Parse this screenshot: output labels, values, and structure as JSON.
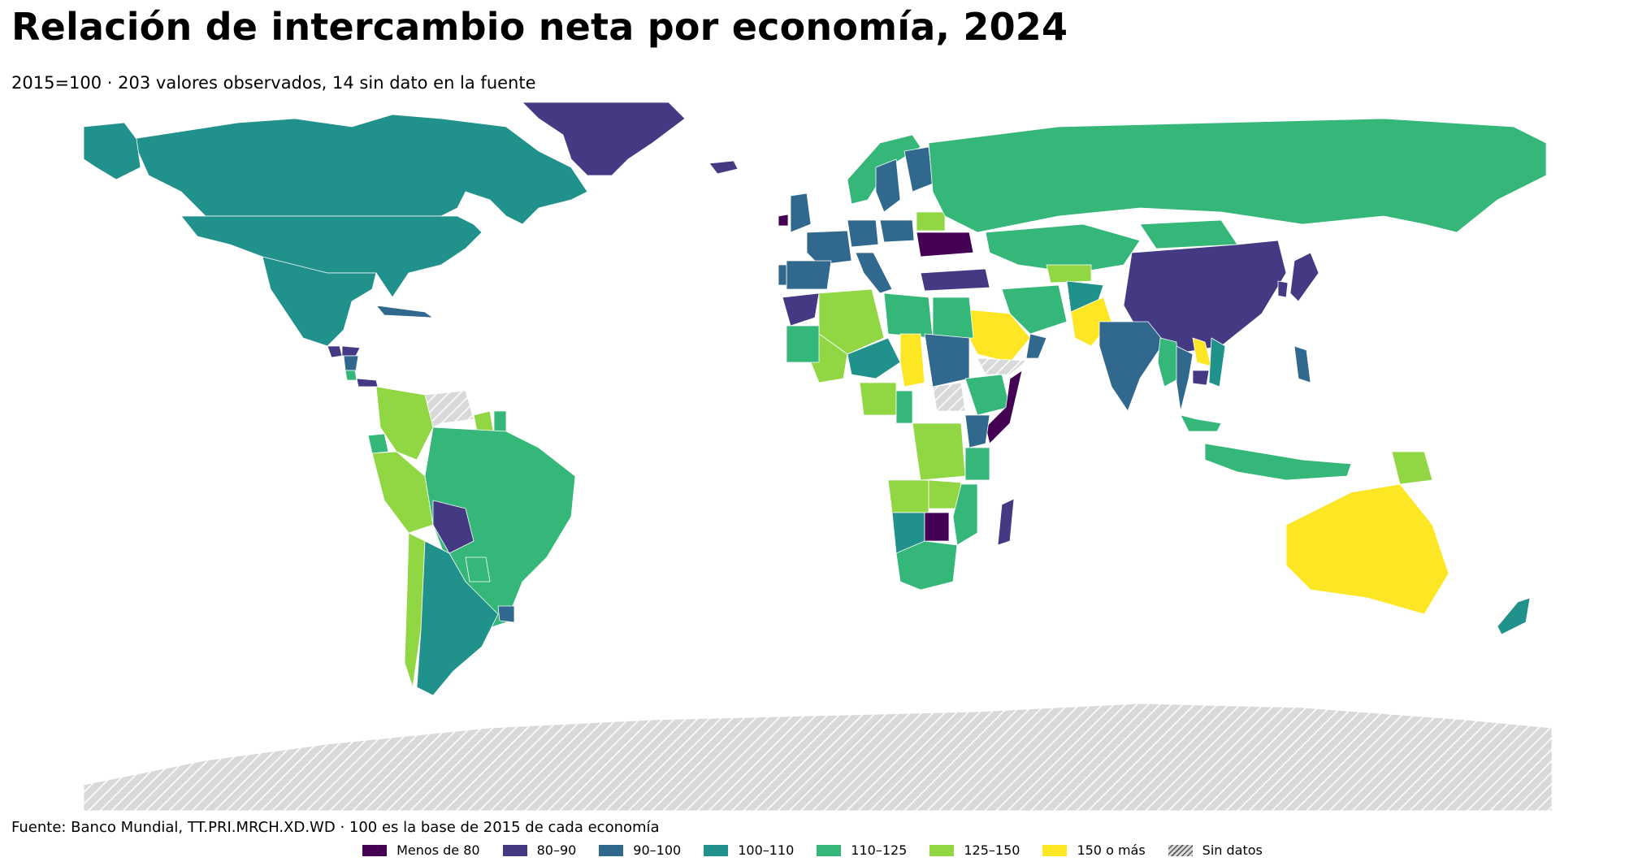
{
  "title": "Relación de intercambio neta por economía, 2024",
  "subtitle": "2015=100 · 203 valores observados, 14 sin dato en la fuente",
  "source": "Fuente: Banco Mundial, TT.PRI.MRCH.XD.WD · 100 es la base de 2015 de cada economía",
  "legend": {
    "placement": "bottom-center",
    "items": [
      {
        "label": "Menos de 80",
        "color": "#440154"
      },
      {
        "label": "80–90",
        "color": "#443983"
      },
      {
        "label": "90–100",
        "color": "#31688e"
      },
      {
        "label": "100–110",
        "color": "#21918c"
      },
      {
        "label": "110–125",
        "color": "#35b779"
      },
      {
        "label": "125–150",
        "color": "#90d743"
      },
      {
        "label": "150 o más",
        "color": "#fde725"
      },
      {
        "label": "Sin datos",
        "color": "#d9d9d9",
        "hatch": true
      }
    ]
  },
  "chart_data": {
    "type": "choropleth",
    "year": 2024,
    "base": "2015=100",
    "observed_count": 203,
    "missing_count": 14,
    "bins": [
      "Menos de 80",
      "80–90",
      "90–100",
      "100–110",
      "110–125",
      "125–150",
      "150 o más",
      "Sin datos"
    ],
    "regions": [
      {
        "region": "Canada",
        "bin": "100–110"
      },
      {
        "region": "United States",
        "bin": "100–110"
      },
      {
        "region": "Alaska",
        "bin": "100–110"
      },
      {
        "region": "Mexico",
        "bin": "100–110"
      },
      {
        "region": "Guatemala",
        "bin": "80–90"
      },
      {
        "region": "Honduras",
        "bin": "80–90"
      },
      {
        "region": "Nicaragua",
        "bin": "90–100"
      },
      {
        "region": "Costa Rica",
        "bin": "110–125"
      },
      {
        "region": "Panama",
        "bin": "80–90"
      },
      {
        "region": "Cuba",
        "bin": "90–100"
      },
      {
        "region": "Greenland",
        "bin": "80–90"
      },
      {
        "region": "Iceland",
        "bin": "80–90"
      },
      {
        "region": "Colombia",
        "bin": "125–150"
      },
      {
        "region": "Venezuela",
        "bin": "Sin datos"
      },
      {
        "region": "Guyana",
        "bin": "125–150"
      },
      {
        "region": "Suriname",
        "bin": "110–125"
      },
      {
        "region": "Ecuador",
        "bin": "110–125"
      },
      {
        "region": "Peru",
        "bin": "125–150"
      },
      {
        "region": "Brazil",
        "bin": "110–125"
      },
      {
        "region": "Bolivia",
        "bin": "80–90"
      },
      {
        "region": "Paraguay",
        "bin": "110–125"
      },
      {
        "region": "Chile",
        "bin": "125–150"
      },
      {
        "region": "Argentina",
        "bin": "100–110"
      },
      {
        "region": "Uruguay",
        "bin": "90–100"
      },
      {
        "region": "Ireland",
        "bin": "Menos de 80"
      },
      {
        "region": "United Kingdom",
        "bin": "90–100"
      },
      {
        "region": "France",
        "bin": "90–100"
      },
      {
        "region": "Spain",
        "bin": "90–100"
      },
      {
        "region": "Portugal",
        "bin": "90–100"
      },
      {
        "region": "Germany",
        "bin": "90–100"
      },
      {
        "region": "Italy",
        "bin": "90–100"
      },
      {
        "region": "Norway",
        "bin": "110–125"
      },
      {
        "region": "Sweden",
        "bin": "90–100"
      },
      {
        "region": "Finland",
        "bin": "90–100"
      },
      {
        "region": "Poland",
        "bin": "90–100"
      },
      {
        "region": "Belarus",
        "bin": "125–150"
      },
      {
        "region": "Ukraine",
        "bin": "Menos de 80"
      },
      {
        "region": "Turkey",
        "bin": "80–90"
      },
      {
        "region": "Russia",
        "bin": "110–125"
      },
      {
        "region": "Kazakhstan",
        "bin": "110–125"
      },
      {
        "region": "Uzbekistan",
        "bin": "125–150"
      },
      {
        "region": "Mongolia",
        "bin": "110–125"
      },
      {
        "region": "China",
        "bin": "80–90"
      },
      {
        "region": "Japan",
        "bin": "80–90"
      },
      {
        "region": "South Korea",
        "bin": "80–90"
      },
      {
        "region": "Iran",
        "bin": "110–125"
      },
      {
        "region": "Afghanistan",
        "bin": "100–110"
      },
      {
        "region": "Pakistan",
        "bin": "150 o más"
      },
      {
        "region": "India",
        "bin": "90–100"
      },
      {
        "region": "Saudi Arabia",
        "bin": "150 o más"
      },
      {
        "region": "Oman",
        "bin": "90–100"
      },
      {
        "region": "Yemen",
        "bin": "Sin datos"
      },
      {
        "region": "Myanmar",
        "bin": "110–125"
      },
      {
        "region": "Thailand",
        "bin": "90–100"
      },
      {
        "region": "Laos",
        "bin": "150 o más"
      },
      {
        "region": "Vietnam",
        "bin": "100–110"
      },
      {
        "region": "Cambodia",
        "bin": "80–90"
      },
      {
        "region": "Malaysia",
        "bin": "110–125"
      },
      {
        "region": "Indonesia",
        "bin": "110–125"
      },
      {
        "region": "Philippines",
        "bin": "90–100"
      },
      {
        "region": "Papua New Guinea",
        "bin": "125–150"
      },
      {
        "region": "Australia",
        "bin": "150 o más"
      },
      {
        "region": "New Zealand",
        "bin": "100–110"
      },
      {
        "region": "Morocco",
        "bin": "80–90"
      },
      {
        "region": "Algeria",
        "bin": "125–150"
      },
      {
        "region": "Mali",
        "bin": "125–150"
      },
      {
        "region": "Mauritania",
        "bin": "110–125"
      },
      {
        "region": "Libya",
        "bin": "110–125"
      },
      {
        "region": "Egypt",
        "bin": "110–125"
      },
      {
        "region": "Niger",
        "bin": "100–110"
      },
      {
        "region": "Chad",
        "bin": "150 o más"
      },
      {
        "region": "Sudan",
        "bin": "90–100"
      },
      {
        "region": "South Sudan",
        "bin": "Sin datos"
      },
      {
        "region": "Ethiopia",
        "bin": "110–125"
      },
      {
        "region": "Somalia",
        "bin": "Menos de 80"
      },
      {
        "region": "Kenya",
        "bin": "90–100"
      },
      {
        "region": "Nigeria",
        "bin": "125–150"
      },
      {
        "region": "Cameroon",
        "bin": "110–125"
      },
      {
        "region": "DR Congo",
        "bin": "125–150"
      },
      {
        "region": "Angola",
        "bin": "125–150"
      },
      {
        "region": "Tanzania",
        "bin": "110–125"
      },
      {
        "region": "Zambia",
        "bin": "125–150"
      },
      {
        "region": "Namibia",
        "bin": "100–110"
      },
      {
        "region": "Botswana",
        "bin": "Menos de 80"
      },
      {
        "region": "South Africa",
        "bin": "110–125"
      },
      {
        "region": "Mozambique",
        "bin": "110–125"
      },
      {
        "region": "Madagascar",
        "bin": "80–90"
      },
      {
        "region": "Antarctica",
        "bin": "Sin datos"
      }
    ]
  }
}
